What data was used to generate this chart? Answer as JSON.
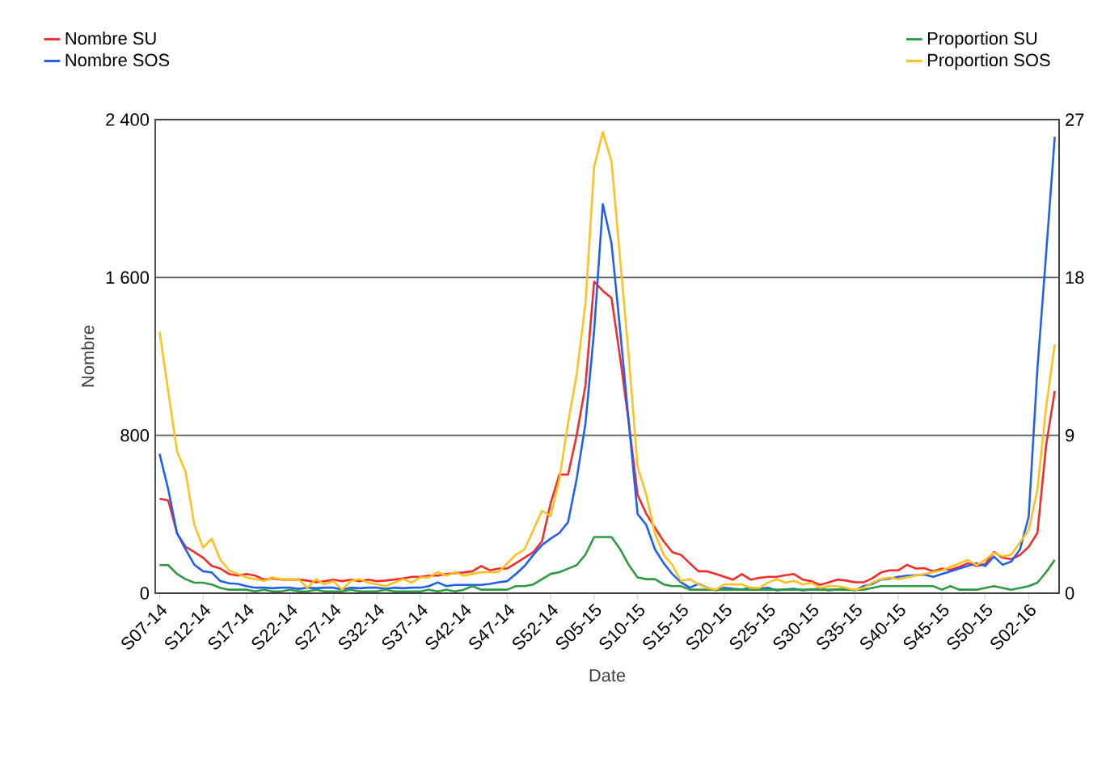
{
  "chart_data": {
    "type": "line",
    "xlabel": "Date",
    "ylabel": "Nombre",
    "categories": [
      "S07-14",
      null,
      null,
      null,
      null,
      "S12-14",
      null,
      null,
      null,
      null,
      "S17-14",
      null,
      null,
      null,
      null,
      "S22-14",
      null,
      null,
      null,
      null,
      "S27-14",
      null,
      null,
      null,
      null,
      "S32-14",
      null,
      null,
      null,
      null,
      "S37-14",
      null,
      null,
      null,
      null,
      "S42-14",
      null,
      null,
      null,
      null,
      "S47-14",
      null,
      null,
      null,
      null,
      "S52-14",
      null,
      null,
      null,
      null,
      "S05-15",
      null,
      null,
      null,
      null,
      "S10-15",
      null,
      null,
      null,
      null,
      "S15-15",
      null,
      null,
      null,
      null,
      "S20-15",
      null,
      null,
      null,
      null,
      "S25-15",
      null,
      null,
      null,
      null,
      "S30-15",
      null,
      null,
      null,
      null,
      "S35-15",
      null,
      null,
      null,
      null,
      "S40-15",
      null,
      null,
      null,
      null,
      "S45-15",
      null,
      null,
      null,
      null,
      "S50-15",
      null,
      null,
      null,
      null,
      "S02-16",
      null,
      null,
      null
    ],
    "series": [
      {
        "name": "Nombre SU",
        "color": "#f52a2a",
        "values": [
          479,
          470,
          305,
          235,
          208,
          180,
          138,
          125,
          97,
          89,
          97,
          89,
          69,
          75,
          69,
          69,
          69,
          64,
          55,
          61,
          69,
          61,
          69,
          61,
          69,
          61,
          64,
          69,
          75,
          83,
          83,
          89,
          89,
          97,
          102,
          105,
          111,
          138,
          116,
          125,
          125,
          152,
          180,
          208,
          263,
          457,
          601,
          601,
          803,
          1053,
          1579,
          1532,
          1496,
          1191,
          859,
          499,
          402,
          332,
          263,
          208,
          194,
          152,
          111,
          111,
          97,
          83,
          69,
          97,
          69,
          78,
          83,
          83,
          91,
          97,
          69,
          61,
          42,
          55,
          69,
          64,
          55,
          55,
          75,
          105,
          116,
          116,
          144,
          125,
          127,
          111,
          125,
          119,
          133,
          152,
          138,
          147,
          208,
          180,
          172,
          194,
          235,
          305,
          748,
          1025
        ]
      },
      {
        "name": "Nombre SOS",
        "color": "#2060f0",
        "values": [
          706,
          526,
          305,
          222,
          144,
          111,
          105,
          61,
          50,
          47,
          36,
          28,
          28,
          25,
          28,
          28,
          22,
          28,
          25,
          28,
          28,
          19,
          28,
          25,
          28,
          28,
          22,
          28,
          25,
          28,
          28,
          36,
          55,
          36,
          42,
          42,
          42,
          42,
          47,
          55,
          61,
          97,
          138,
          194,
          244,
          277,
          305,
          360,
          582,
          859,
          1330,
          1972,
          1773,
          1330,
          859,
          402,
          346,
          222,
          152,
          97,
          55,
          28,
          47,
          28,
          14,
          28,
          22,
          19,
          28,
          22,
          28,
          14,
          19,
          22,
          14,
          19,
          22,
          14,
          19,
          22,
          14,
          36,
          47,
          69,
          75,
          83,
          89,
          91,
          94,
          83,
          97,
          111,
          125,
          138,
          152,
          138,
          186,
          144,
          161,
          222,
          388,
          1136,
          1717,
          2313
        ]
      },
      {
        "name": "Proportion SU",
        "color": "#2e9a40",
        "axis": "y2",
        "values": [
          1.6,
          1.6,
          1.1,
          0.8,
          0.6,
          0.6,
          0.5,
          0.3,
          0.2,
          0.2,
          0.2,
          0.1,
          0.2,
          0.1,
          0.1,
          0.2,
          0.1,
          0.1,
          0.2,
          0.1,
          0.1,
          0.1,
          0.2,
          0.1,
          0.1,
          0.1,
          0.2,
          0.1,
          0.1,
          0.1,
          0.1,
          0.2,
          0.1,
          0.2,
          0.1,
          0.2,
          0.4,
          0.2,
          0.2,
          0.2,
          0.2,
          0.4,
          0.4,
          0.5,
          0.8,
          1.1,
          1.2,
          1.4,
          1.6,
          2.2,
          3.2,
          3.2,
          3.2,
          2.5,
          1.6,
          0.9,
          0.8,
          0.8,
          0.5,
          0.4,
          0.4,
          0.2,
          0.2,
          0.2,
          0.2,
          0.2,
          0.2,
          0.2,
          0.2,
          0.2,
          0.2,
          0.2,
          0.2,
          0.2,
          0.2,
          0.2,
          0.2,
          0.2,
          0.2,
          0.2,
          0.2,
          0.2,
          0.3,
          0.4,
          0.4,
          0.4,
          0.4,
          0.4,
          0.4,
          0.4,
          0.2,
          0.4,
          0.2,
          0.2,
          0.2,
          0.3,
          0.4,
          0.3,
          0.2,
          0.3,
          0.4,
          0.6,
          1.2,
          1.9
        ]
      },
      {
        "name": "Proportion SOS",
        "color": "#ffc020",
        "axis": "y2",
        "values": [
          14.9,
          11.5,
          8.1,
          6.9,
          3.9,
          2.6,
          3.1,
          1.9,
          1.3,
          1.1,
          0.9,
          0.8,
          0.7,
          0.9,
          0.8,
          0.8,
          0.8,
          0.3,
          0.8,
          0.5,
          0.7,
          0.2,
          0.7,
          0.8,
          0.6,
          0.5,
          0.4,
          0.6,
          0.8,
          0.6,
          0.9,
          0.9,
          1.2,
          1.0,
          1.2,
          1.0,
          1.1,
          1.2,
          1.2,
          1.2,
          1.7,
          2.2,
          2.5,
          3.6,
          4.7,
          4.4,
          6.5,
          9.7,
          12.5,
          16.5,
          24.3,
          26.3,
          24.6,
          19.0,
          13.4,
          7.2,
          5.6,
          3.4,
          2.2,
          1.6,
          0.7,
          0.8,
          0.5,
          0.3,
          0.2,
          0.5,
          0.5,
          0.5,
          0.3,
          0.3,
          0.6,
          0.8,
          0.6,
          0.7,
          0.5,
          0.6,
          0.3,
          0.4,
          0.4,
          0.3,
          0.2,
          0.3,
          0.6,
          0.8,
          0.9,
          0.8,
          0.9,
          1.0,
          1.1,
          1.2,
          1.3,
          1.5,
          1.7,
          1.9,
          1.6,
          1.9,
          2.3,
          2.1,
          2.2,
          2.9,
          3.6,
          5.9,
          10.6,
          14.2
        ]
      }
    ],
    "ylim": [
      0,
      2400
    ],
    "yticks": [
      0,
      {
        "value": 800,
        "label": "800"
      },
      {
        "value": 1600,
        "label": "1 600"
      },
      {
        "value": 2400,
        "label": "2 400"
      }
    ],
    "y2lim": [
      0,
      27
    ],
    "y2ticks": [
      0,
      9,
      18,
      27
    ],
    "grid": "y",
    "legend": "top"
  }
}
